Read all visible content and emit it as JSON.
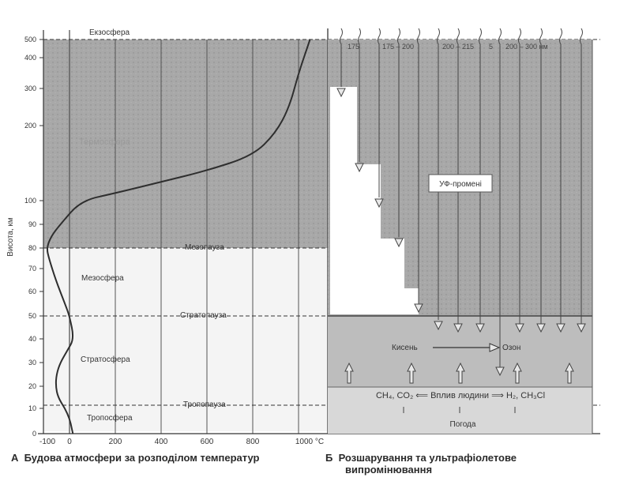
{
  "colors": {
    "shade": "#a6a6a6",
    "shade_dark": "#8f8f8f",
    "line": "#3a3a3a",
    "paper": "#f7f7f7"
  },
  "panel_a": {
    "y_label": "Висота, км",
    "y_ticks": [
      "0",
      "10",
      "20",
      "30",
      "40",
      "50",
      "60",
      "70",
      "80",
      "90",
      "100",
      "200",
      "300",
      "400",
      "500"
    ],
    "x_ticks": [
      "-100",
      "0",
      "200",
      "400",
      "600",
      "800",
      "1000 °C"
    ],
    "layers": {
      "exosphere": "Екзосфера",
      "thermosphere": "Термосфера",
      "mesopause": "Мезопауза",
      "mesosphere": "Мезосфера",
      "stratopause": "Стратопауза",
      "stratosphere": "Стратосфера",
      "tropopause": "Тропопауза",
      "troposphere": "Тропосфера"
    },
    "caption_letter": "А",
    "caption": "Будова атмосфери за розподілом температур"
  },
  "panel_b": {
    "wavelengths": [
      "175",
      "175 – 200",
      "200 – 215",
      "5",
      "200 – 300 нм"
    ],
    "uv_label": "УФ-промені",
    "oxygen": "Кисень",
    "ozone": "Озон",
    "sources": "CH₄, CO₂ ⟸ Вплив людини ⟹ H₂, CH₃Cl",
    "weather": "Погода",
    "caption_letter": "Б",
    "caption_line1": "Розшарування та ультрафіолетове",
    "caption_line2": "випромінювання"
  },
  "chart_data": {
    "type": "line",
    "title": "Будова атмосфери за розподілом температур",
    "xlabel": "",
    "ylabel": "Висота, км",
    "x_unit": "°C",
    "y_unit": "км",
    "xlim": [
      -100,
      1100
    ],
    "y_scale": "piecewise",
    "series": [
      {
        "x": [
          15,
          10,
          0,
          -20,
          -50,
          -60,
          -57,
          -40,
          -10,
          20,
          0,
          -20,
          -60,
          -90,
          -100,
          -80,
          -40,
          50,
          200,
          400,
          600,
          800,
          900,
          960,
          1000,
          1050
        ],
        "y": [
          0,
          2,
          6,
          10,
          15,
          20,
          25,
          30,
          35,
          40,
          50,
          55,
          65,
          75,
          80,
          85,
          90,
          100,
          110,
          125,
          140,
          160,
          190,
          250,
          350,
          500
        ]
      }
    ]
  }
}
